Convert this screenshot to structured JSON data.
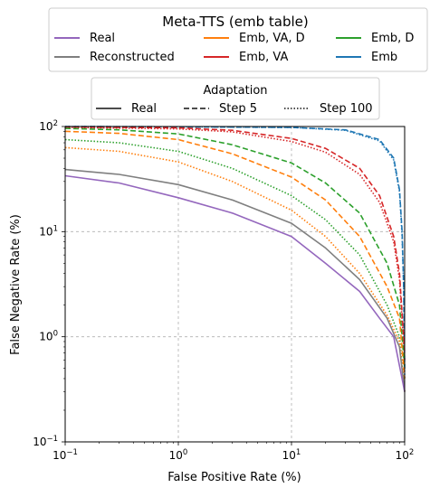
{
  "chart_data": {
    "type": "line",
    "xscale": "log",
    "yscale": "log",
    "xlabel": "False Positive Rate (%)",
    "ylabel": "False Negative Rate (%)",
    "xlim": [
      0.1,
      100
    ],
    "ylim": [
      0.1,
      100
    ],
    "xticks": [
      0.1,
      1,
      10,
      100
    ],
    "yticks": [
      0.1,
      1,
      10,
      100
    ],
    "grid": "dashed, light gray, at major ticks",
    "legend_series": {
      "title": "Meta-TTS (emb table)",
      "placement": "above plot",
      "entries": [
        {
          "label": "Real",
          "color": "#9467bd"
        },
        {
          "label": "Reconstructed",
          "color": "#7f7f7f"
        },
        {
          "label": "Emb, VA, D",
          "color": "#ff7f0e"
        },
        {
          "label": "Emb, VA",
          "color": "#d62728"
        },
        {
          "label": "Emb, D",
          "color": "#2ca02c"
        },
        {
          "label": "Emb",
          "color": "#1f77b4"
        }
      ]
    },
    "legend_style": {
      "title": "Adaptation",
      "placement": "above plot",
      "entries": [
        {
          "label": "Real",
          "dash": "solid"
        },
        {
          "label": "Step 5",
          "dash": "dashed"
        },
        {
          "label": "Step 100",
          "dash": "dotted"
        }
      ]
    },
    "series": [
      {
        "color": "#1f77b4",
        "style": "dashed",
        "points": [
          [
            0.1,
            100
          ],
          [
            1,
            99.5
          ],
          [
            10,
            98
          ],
          [
            30,
            93
          ],
          [
            60,
            75
          ],
          [
            80,
            50
          ],
          [
            90,
            25
          ],
          [
            95,
            10
          ],
          [
            98,
            3
          ],
          [
            100,
            0.5
          ]
        ]
      },
      {
        "color": "#1f77b4",
        "style": "dotted",
        "points": [
          [
            0.1,
            100
          ],
          [
            1,
            99.5
          ],
          [
            10,
            98
          ],
          [
            30,
            92
          ],
          [
            60,
            73
          ],
          [
            80,
            48
          ],
          [
            90,
            24
          ],
          [
            95,
            9
          ],
          [
            98,
            3
          ],
          [
            100,
            0.4
          ]
        ]
      },
      {
        "color": "#d62728",
        "style": "dashed",
        "points": [
          [
            0.1,
            99
          ],
          [
            1,
            97
          ],
          [
            3,
            92
          ],
          [
            10,
            77
          ],
          [
            20,
            62
          ],
          [
            40,
            40
          ],
          [
            60,
            22
          ],
          [
            80,
            9
          ],
          [
            90,
            4
          ],
          [
            100,
            0.7
          ]
        ]
      },
      {
        "color": "#d62728",
        "style": "dotted",
        "points": [
          [
            0.1,
            98
          ],
          [
            1,
            95
          ],
          [
            3,
            89
          ],
          [
            10,
            72
          ],
          [
            20,
            57
          ],
          [
            40,
            35
          ],
          [
            60,
            19
          ],
          [
            80,
            8
          ],
          [
            90,
            3.5
          ],
          [
            100,
            0.6
          ]
        ]
      },
      {
        "color": "#2ca02c",
        "style": "dashed",
        "points": [
          [
            0.1,
            96
          ],
          [
            0.3,
            93
          ],
          [
            1,
            85
          ],
          [
            3,
            67
          ],
          [
            10,
            45
          ],
          [
            20,
            29
          ],
          [
            40,
            15
          ],
          [
            70,
            5
          ],
          [
            90,
            2
          ],
          [
            100,
            0.5
          ]
        ]
      },
      {
        "color": "#2ca02c",
        "style": "dotted",
        "points": [
          [
            0.1,
            75
          ],
          [
            0.3,
            70
          ],
          [
            1,
            58
          ],
          [
            3,
            40
          ],
          [
            10,
            22
          ],
          [
            20,
            13
          ],
          [
            40,
            6
          ],
          [
            70,
            2
          ],
          [
            90,
            1
          ],
          [
            100,
            0.3
          ]
        ]
      },
      {
        "color": "#ff7f0e",
        "style": "dashed",
        "points": [
          [
            0.1,
            90
          ],
          [
            0.3,
            86
          ],
          [
            1,
            75
          ],
          [
            3,
            55
          ],
          [
            10,
            33
          ],
          [
            20,
            20
          ],
          [
            40,
            9
          ],
          [
            70,
            3
          ],
          [
            90,
            1.5
          ],
          [
            100,
            0.4
          ]
        ]
      },
      {
        "color": "#ff7f0e",
        "style": "dotted",
        "points": [
          [
            0.1,
            63
          ],
          [
            0.3,
            58
          ],
          [
            1,
            46
          ],
          [
            3,
            30
          ],
          [
            10,
            16
          ],
          [
            20,
            9
          ],
          [
            40,
            4
          ],
          [
            70,
            1.6
          ],
          [
            90,
            0.9
          ],
          [
            100,
            0.3
          ]
        ]
      },
      {
        "color": "#7f7f7f",
        "style": "solid",
        "points": [
          [
            0.1,
            39
          ],
          [
            0.3,
            35
          ],
          [
            1,
            28
          ],
          [
            3,
            20
          ],
          [
            10,
            12
          ],
          [
            20,
            7
          ],
          [
            40,
            3.5
          ],
          [
            70,
            1.5
          ],
          [
            90,
            0.8
          ],
          [
            100,
            0.3
          ]
        ]
      },
      {
        "color": "#9467bd",
        "style": "solid",
        "points": [
          [
            0.1,
            34
          ],
          [
            0.3,
            29
          ],
          [
            1,
            21
          ],
          [
            3,
            15
          ],
          [
            10,
            9
          ],
          [
            20,
            5
          ],
          [
            40,
            2.7
          ],
          [
            60,
            1.5
          ],
          [
            80,
            1
          ],
          [
            100,
            0.3
          ]
        ]
      }
    ]
  }
}
